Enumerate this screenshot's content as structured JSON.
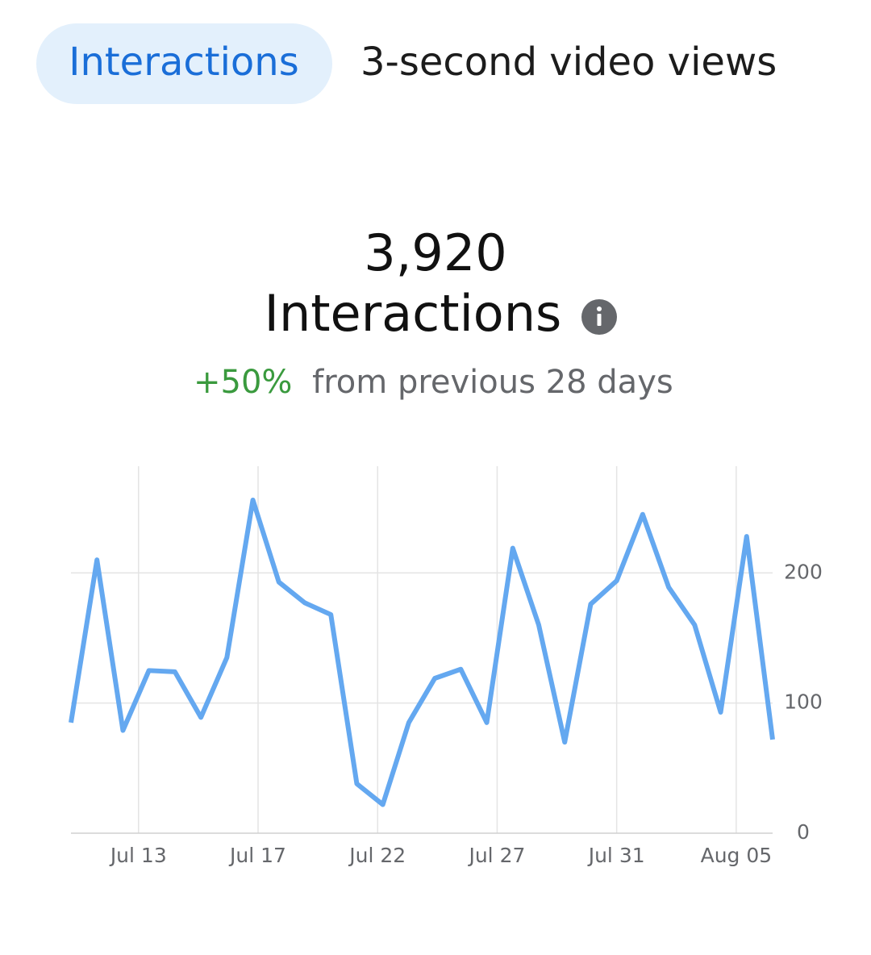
{
  "tabs": [
    "Interactions",
    "3-second video views"
  ],
  "summary": {
    "total": "3,920",
    "metric": "Interactions",
    "change": "+50%",
    "comparison": "from previous 28 days"
  },
  "chart_data": {
    "type": "line",
    "color": "#64a8f0",
    "x": [
      0,
      1,
      2,
      3,
      4,
      5,
      6,
      7,
      8,
      9,
      10,
      11,
      12,
      13,
      14,
      15,
      16,
      17,
      18,
      19,
      20,
      21,
      22,
      23,
      24,
      25,
      26,
      27
    ],
    "values": [
      85,
      210,
      79,
      125,
      124,
      89,
      135,
      256,
      193,
      177,
      168,
      38,
      22,
      85,
      119,
      126,
      85,
      219,
      160,
      70,
      176,
      194,
      245,
      189,
      160,
      93,
      228,
      72
    ],
    "xlim": [
      0,
      27
    ],
    "xticks": [
      {
        "value": 2.6,
        "label": "Jul 13"
      },
      {
        "value": 7.2,
        "label": "Jul 17"
      },
      {
        "value": 11.8,
        "label": "Jul 22"
      },
      {
        "value": 16.4,
        "label": "Jul 27"
      },
      {
        "value": 21,
        "label": "Jul 31"
      },
      {
        "value": 25.6,
        "label": "Aug 05"
      }
    ],
    "ylim": [
      0,
      282
    ],
    "yticks": [
      0,
      100,
      200
    ],
    "grid": true
  }
}
